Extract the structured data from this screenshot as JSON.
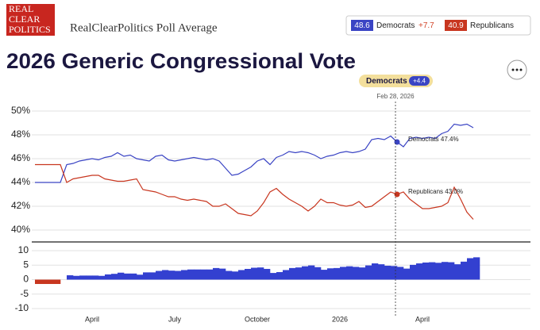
{
  "header": {
    "logo": [
      "REAL",
      "CLEAR",
      "POLITICS"
    ],
    "source": "RealClearPolitics Poll Average",
    "lead": "+7.7",
    "title": "2026 Generic Congressional Vote"
  },
  "tooltip": {
    "spread": "+4.4",
    "date": "Feb 28, 2026"
  },
  "chart_data": [
    {
      "type": "line",
      "series": [
        {
          "name": "Democrats",
          "color": "#3a44c4",
          "values": [
            44.0,
            44.0,
            44.0,
            44.0,
            44.0,
            45.5,
            45.6,
            45.8,
            45.9,
            46.0,
            45.9,
            46.1,
            46.2,
            46.5,
            46.2,
            46.3,
            46.0,
            45.9,
            45.8,
            46.2,
            46.3,
            45.9,
            45.8,
            45.9,
            46.0,
            46.1,
            46.0,
            45.9,
            46.0,
            45.8,
            45.2,
            44.6,
            44.7,
            45.0,
            45.3,
            45.8,
            46.0,
            45.5,
            46.1,
            46.3,
            46.6,
            46.5,
            46.6,
            46.5,
            46.3,
            46.0,
            46.2,
            46.3,
            46.5,
            46.6,
            46.5,
            46.6,
            46.8,
            47.6,
            47.7,
            47.6,
            47.9,
            47.4,
            47.0,
            47.7,
            47.8,
            47.7,
            47.8,
            47.7,
            48.1,
            48.3,
            48.9,
            48.8,
            48.9,
            48.6
          ]
        },
        {
          "name": "Republicans",
          "color": "#c8361f",
          "values": [
            45.5,
            45.5,
            45.5,
            45.5,
            45.5,
            44.0,
            44.3,
            44.4,
            44.5,
            44.6,
            44.6,
            44.3,
            44.2,
            44.1,
            44.1,
            44.2,
            44.3,
            43.4,
            43.3,
            43.2,
            43.0,
            42.8,
            42.8,
            42.6,
            42.5,
            42.6,
            42.5,
            42.4,
            42.0,
            42.0,
            42.2,
            41.8,
            41.4,
            41.3,
            41.2,
            41.6,
            42.3,
            43.2,
            43.5,
            43.0,
            42.6,
            42.3,
            42.0,
            41.6,
            42.0,
            42.6,
            42.3,
            42.3,
            42.1,
            42.0,
            42.1,
            42.4,
            41.9,
            42.0,
            42.4,
            42.8,
            43.2,
            43.0,
            43.2,
            42.6,
            42.2,
            41.8,
            41.8,
            41.9,
            42.0,
            42.3,
            43.6,
            42.6,
            41.5,
            40.9
          ]
        }
      ],
      "annotations": [
        "Democrats 47.4%",
        "Republicans 43.0%"
      ],
      "ylim": [
        39,
        51
      ],
      "yticks": [
        {
          "value": 40,
          "label": "40%"
        },
        {
          "value": 42,
          "label": "42%"
        },
        {
          "value": 44,
          "label": "44%"
        },
        {
          "value": 46,
          "label": "46%"
        },
        {
          "value": 48,
          "label": "48%"
        },
        {
          "value": 50,
          "label": "50%"
        }
      ],
      "grid": true
    },
    {
      "type": "bar",
      "categories": [
        null,
        null,
        null,
        null,
        null,
        null,
        null,
        null,
        null,
        "April",
        null,
        null,
        null,
        null,
        null,
        null,
        null,
        null,
        null,
        null,
        null,
        null,
        "July",
        null,
        null,
        null,
        null,
        null,
        null,
        null,
        null,
        null,
        null,
        null,
        null,
        "October",
        null,
        null,
        null,
        null,
        null,
        null,
        null,
        null,
        null,
        null,
        null,
        null,
        "2026",
        null,
        null,
        null,
        null,
        null,
        null,
        null,
        null,
        null,
        null,
        null,
        null,
        "April",
        null,
        null,
        null,
        null,
        null,
        null,
        null,
        null
      ],
      "values": [
        -1.5,
        -1.5,
        -1.5,
        -1.5,
        null,
        1.5,
        1.3,
        1.4,
        1.4,
        1.4,
        1.3,
        1.8,
        2.0,
        2.4,
        2.1,
        2.1,
        1.7,
        2.5,
        2.5,
        3.0,
        3.3,
        3.1,
        3.0,
        3.3,
        3.5,
        3.5,
        3.5,
        3.5,
        4.0,
        3.8,
        3.0,
        2.8,
        3.3,
        3.7,
        4.1,
        4.2,
        3.7,
        2.3,
        2.6,
        3.3,
        4.0,
        4.2,
        4.6,
        4.9,
        4.3,
        3.4,
        3.9,
        4.0,
        4.4,
        4.6,
        4.4,
        4.2,
        4.9,
        5.6,
        5.3,
        4.8,
        4.7,
        4.4,
        3.8,
        5.1,
        5.6,
        5.9,
        6.0,
        5.8,
        6.1,
        6.0,
        5.3,
        6.2,
        7.4,
        7.7
      ],
      "colors": {
        "positive": "#3340d0",
        "negative": "#c8361f"
      },
      "ylim": [
        -13,
        13
      ],
      "yticks": [
        10,
        5,
        0,
        -5,
        -10
      ],
      "grid": true
    }
  ]
}
